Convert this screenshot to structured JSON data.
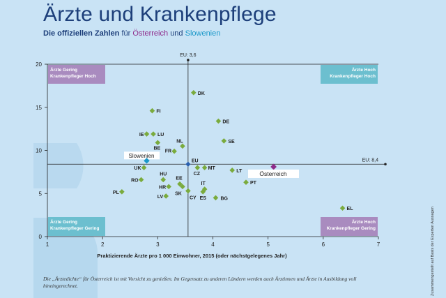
{
  "header": {
    "title": "Ärzte und Krankenpflege",
    "subtitle_part1": "Die offiziellen Zahlen",
    "subtitle_part2": "für",
    "subtitle_at": "Österreich",
    "subtitle_part3": "und",
    "subtitle_si": "Slowenien"
  },
  "colors": {
    "background": "#c9e3f5",
    "point_green": "#7aab3d",
    "austria": "#8e2a8a",
    "slovenia": "#1a98c9",
    "eu": "#2a5fae",
    "quadrant_purple": "#a98bbf",
    "quadrant_teal": "#6cbfcf"
  },
  "chart_data": {
    "type": "scatter",
    "title": "Ärzte und Krankenpflege",
    "xlabel": "Praktizierende Ärzte pro 1 000 Einwohner, 2015 (oder nächstgelegenes Jahr)",
    "ylabel": "",
    "xlim": [
      1,
      7
    ],
    "ylim": [
      0,
      20
    ],
    "xticks": [
      1,
      2,
      3,
      4,
      5,
      6,
      7
    ],
    "yticks": [
      0,
      5,
      10,
      15,
      20
    ],
    "eu_x_label": "EU: 3,6",
    "eu_y_label": "EU: 8,4",
    "eu_x": 3.55,
    "eu_y": 8.4,
    "quadrants": {
      "top_left": [
        "Ärzte Gering",
        "Krankenpfleger Hoch"
      ],
      "top_right": [
        "Ärzte Hoch",
        "Krankenpfleger Hoch"
      ],
      "bottom_left": [
        "Ärzte Gering",
        "Krankenpfleger Gering"
      ],
      "bottom_right": [
        "Ärzte Hoch",
        "Krankenpfleger Gering"
      ]
    },
    "points": [
      {
        "label": "DK",
        "x": 3.65,
        "y": 16.7
      },
      {
        "label": "FI",
        "x": 2.9,
        "y": 14.6
      },
      {
        "label": "DE",
        "x": 4.1,
        "y": 13.4
      },
      {
        "label": "IE",
        "x": 2.8,
        "y": 11.9
      },
      {
        "label": "LU",
        "x": 2.92,
        "y": 11.9
      },
      {
        "label": "SE",
        "x": 4.2,
        "y": 11.1
      },
      {
        "label": "NL",
        "x": 3.45,
        "y": 10.5
      },
      {
        "label": "BE",
        "x": 3.0,
        "y": 10.9
      },
      {
        "label": "FR",
        "x": 3.3,
        "y": 9.9
      },
      {
        "label": "UK",
        "x": 2.75,
        "y": 8.0
      },
      {
        "label": "MT",
        "x": 3.85,
        "y": 8.0
      },
      {
        "label": "CZ",
        "x": 3.72,
        "y": 8.0
      },
      {
        "label": "LT",
        "x": 4.35,
        "y": 7.7
      },
      {
        "label": "RO",
        "x": 2.7,
        "y": 6.6
      },
      {
        "label": "HU",
        "x": 3.1,
        "y": 6.6
      },
      {
        "label": "EE",
        "x": 3.4,
        "y": 6.1
      },
      {
        "label": "HR",
        "x": 3.2,
        "y": 5.8
      },
      {
        "label": "IT",
        "x": 3.85,
        "y": 5.5
      },
      {
        "label": "PT",
        "x": 4.6,
        "y": 6.3
      },
      {
        "label": "PL",
        "x": 2.35,
        "y": 5.2
      },
      {
        "label": "LV",
        "x": 3.15,
        "y": 4.7
      },
      {
        "label": "SK",
        "x": 3.45,
        "y": 5.8
      },
      {
        "label": "CY",
        "x": 3.55,
        "y": 5.3
      },
      {
        "label": "ES",
        "x": 3.82,
        "y": 5.2
      },
      {
        "label": "BG",
        "x": 4.05,
        "y": 4.5
      },
      {
        "label": "EL",
        "x": 6.35,
        "y": 3.3
      }
    ],
    "highlight": [
      {
        "label": "Slowenien",
        "x": 2.8,
        "y": 8.8
      },
      {
        "label": "EU",
        "x": 3.55,
        "y": 8.4
      },
      {
        "label": "Österreich",
        "x": 5.1,
        "y": 8.1
      }
    ]
  },
  "footnote": "Die „Ärztedichte“ für Österreich ist mit Vorsicht zu genießen. Im Gegensatz zu anderen Ländern werden auch Ärztinnen und Ärzte in Ausbildung voll hineingerechnet.",
  "sidenote": "Zusammengestellt auf Basis der Experten Aussagen"
}
